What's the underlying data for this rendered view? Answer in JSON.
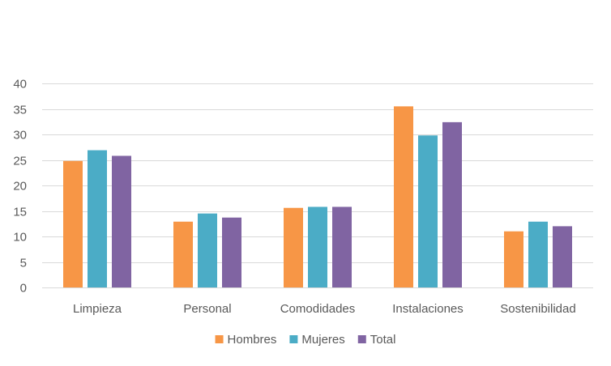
{
  "chart_data": {
    "type": "bar",
    "categories": [
      "Limpieza",
      "Personal",
      "Comodidades",
      "Instalaciones",
      "Sostenibilidad"
    ],
    "series": [
      {
        "name": "Hombres",
        "color": "#F79646",
        "values": [
          24.8,
          12.9,
          15.6,
          35.5,
          11.0
        ]
      },
      {
        "name": "Mujeres",
        "color": "#4BACC6",
        "values": [
          26.9,
          14.5,
          15.8,
          29.8,
          12.9
        ]
      },
      {
        "name": "Total",
        "color": "#8064A2",
        "values": [
          25.8,
          13.7,
          15.8,
          32.4,
          12.0
        ]
      }
    ],
    "title": "",
    "xlabel": "",
    "ylabel": "",
    "ylim": [
      0,
      40
    ],
    "yticks": [
      0,
      5,
      10,
      15,
      20,
      25,
      30,
      35,
      40
    ],
    "grid": true,
    "legend": "bottom"
  }
}
